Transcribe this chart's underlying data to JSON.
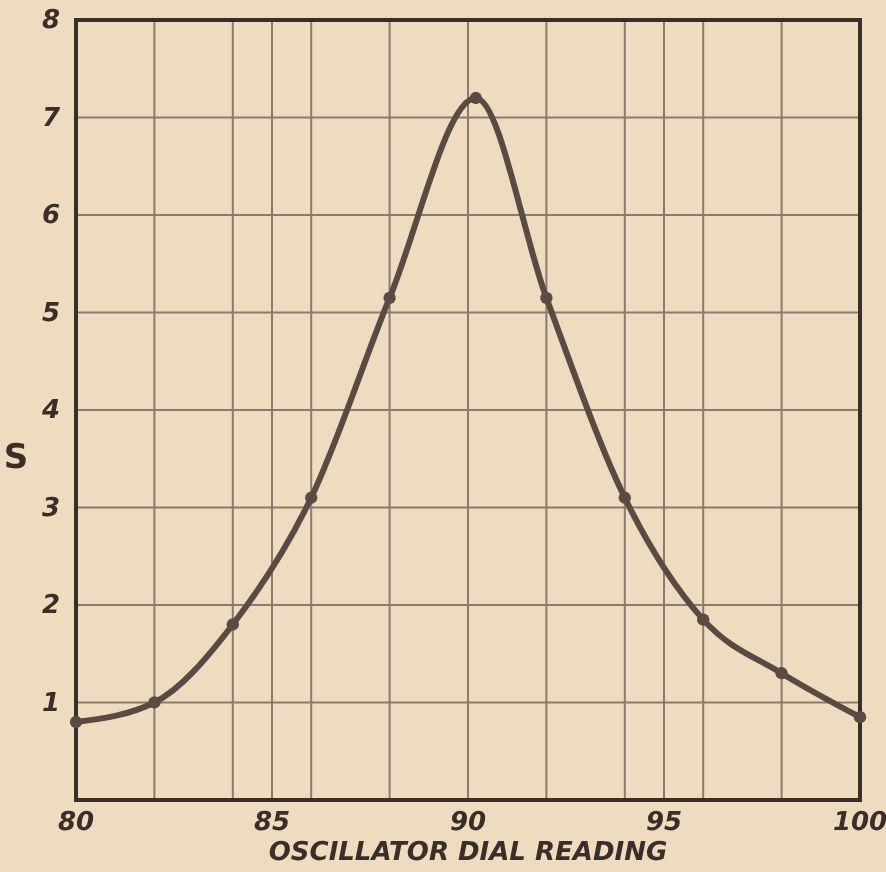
{
  "chart_data": {
    "type": "line",
    "xlabel": "OSCILLATOR DIAL READING",
    "ylabel": "S",
    "x": [
      80,
      82,
      84,
      86,
      88,
      90.2,
      92,
      94,
      96,
      98,
      100
    ],
    "series": [
      {
        "color": "#5a4a44",
        "values": [
          0.8,
          1.0,
          1.8,
          3.1,
          5.15,
          7.2,
          5.15,
          3.1,
          1.85,
          1.3,
          0.85
        ]
      }
    ],
    "xlim": [
      80,
      100
    ],
    "ylim": [
      0,
      8
    ],
    "xticks": [
      80,
      {
        "value": 82,
        "label": null
      },
      {
        "value": 84,
        "label": null
      },
      85,
      {
        "value": 86,
        "label": null
      },
      {
        "value": 88,
        "label": null
      },
      90,
      {
        "value": 92,
        "label": null
      },
      {
        "value": 94,
        "label": null
      },
      95,
      {
        "value": 96,
        "label": null
      },
      {
        "value": 98,
        "label": null
      },
      100
    ],
    "yticks": [
      1,
      2,
      3,
      4,
      5,
      6,
      7,
      8
    ],
    "grid": true,
    "marker": "circle",
    "line_style": "solid"
  }
}
